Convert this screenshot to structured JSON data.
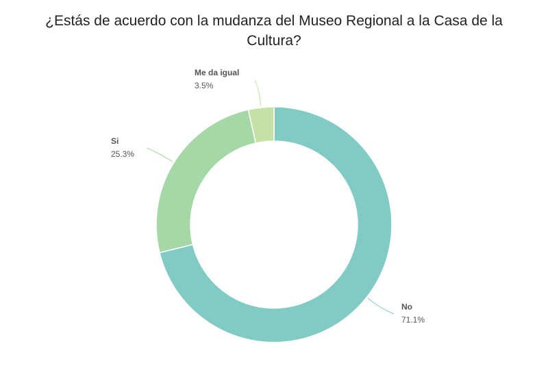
{
  "chart_data": {
    "type": "donut",
    "title": "¿Estás de acuerdo con la mudanza del Museo Regional a la Casa de la Cultura?",
    "slices": [
      {
        "label": "No",
        "value": 71.1,
        "display": "71.1%",
        "color": "#82cbc4"
      },
      {
        "label": "Si",
        "value": 25.3,
        "display": "25.3%",
        "color": "#a5d7a7"
      },
      {
        "label": "Me da igual",
        "value": 3.5,
        "display": "3.5%",
        "color": "#c5e1a5"
      }
    ],
    "legend": "none",
    "labels": "outside-with-leader-lines"
  }
}
